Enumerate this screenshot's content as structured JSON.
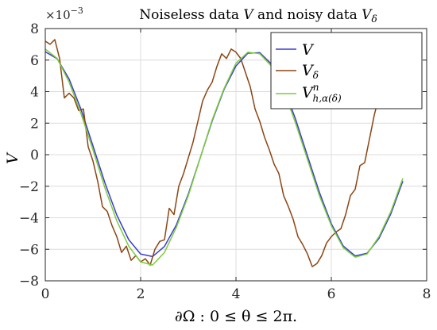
{
  "chart_data": {
    "type": "line",
    "title": "Noiseless data V and noisy data Vδ",
    "title_parts": {
      "prefix": "Noiseless data ",
      "v": "V",
      "mid": " and noisy data ",
      "vdelta": "V",
      "vdelta_sub": "δ"
    },
    "xlabel": "∂Ω : 0 ≤ θ ≤ 2π.",
    "ylabel": "V",
    "y_multiplier": {
      "base": "×10",
      "exponent": "−3"
    },
    "xlim": [
      0,
      8
    ],
    "ylim": [
      -8,
      8
    ],
    "xticks": [
      0,
      2,
      4,
      6,
      8
    ],
    "yticks": [
      -8,
      -6,
      -4,
      -2,
      0,
      2,
      4,
      6,
      8
    ],
    "grid": true,
    "legend_position": "top-right",
    "series": [
      {
        "name": "V",
        "legend": {
          "main": "V",
          "sub": ""
        },
        "color": "#3b3bd6",
        "x": [
          0.0,
          0.25,
          0.5,
          0.75,
          1.0,
          1.25,
          1.5,
          1.75,
          2.0,
          2.25,
          2.5,
          2.75,
          3.0,
          3.25,
          3.5,
          3.75,
          4.0,
          4.25,
          4.5,
          4.75,
          5.0,
          5.25,
          5.5,
          5.75,
          6.0,
          6.25,
          6.5,
          6.75,
          7.0,
          7.25,
          7.5
        ],
        "y": [
          6.53,
          6.08,
          4.8,
          2.87,
          0.56,
          -1.78,
          -3.83,
          -5.39,
          -6.3,
          -6.46,
          -5.82,
          -4.45,
          -2.5,
          -0.2,
          2.13,
          4.14,
          5.63,
          6.44,
          6.47,
          5.73,
          4.28,
          2.25,
          -0.08,
          -2.39,
          -4.38,
          -5.79,
          -6.42,
          -6.25,
          -5.31,
          -3.74,
          -1.67
        ]
      },
      {
        "name": "Vδ",
        "legend": {
          "main": "V",
          "sub": "δ"
        },
        "color": "#8b4513",
        "x": [
          0.0,
          0.1,
          0.2,
          0.3,
          0.4,
          0.5,
          0.6,
          0.7,
          0.8,
          0.9,
          1.0,
          1.1,
          1.2,
          1.3,
          1.4,
          1.5,
          1.6,
          1.7,
          1.8,
          1.9,
          2.0,
          2.1,
          2.2,
          2.3,
          2.4,
          2.5,
          2.6,
          2.7,
          2.8,
          2.9,
          3.0,
          3.1,
          3.2,
          3.3,
          3.4,
          3.5,
          3.6,
          3.7,
          3.8,
          3.9,
          4.0,
          4.1,
          4.2,
          4.3,
          4.4,
          4.5,
          4.6,
          4.7,
          4.8,
          4.9,
          5.0,
          5.1,
          5.2,
          5.3,
          5.4,
          5.5,
          5.6,
          5.7,
          5.8,
          5.9,
          6.0,
          6.1,
          6.2,
          6.3,
          6.4,
          6.5,
          6.6,
          6.7,
          6.8,
          6.9,
          7.0,
          7.1,
          7.2,
          7.3,
          7.4,
          7.5
        ],
        "y": [
          7.2,
          7.0,
          7.3,
          6.1,
          3.6,
          3.9,
          3.6,
          2.8,
          2.9,
          0.5,
          -0.4,
          -1.7,
          -3.3,
          -3.6,
          -4.5,
          -5.2,
          -6.2,
          -5.8,
          -6.7,
          -6.4,
          -6.8,
          -6.6,
          -7.0,
          -6.0,
          -5.5,
          -5.4,
          -3.4,
          -3.8,
          -2.0,
          -1.2,
          -0.2,
          0.8,
          2.1,
          3.4,
          4.1,
          4.6,
          5.6,
          6.4,
          6.1,
          6.7,
          6.5,
          6.1,
          5.2,
          4.3,
          2.9,
          2.1,
          1.1,
          0.3,
          -0.6,
          -1.2,
          -2.6,
          -3.3,
          -4.1,
          -5.2,
          -5.7,
          -6.3,
          -7.1,
          -6.9,
          -6.4,
          -5.6,
          -5.2,
          -4.9,
          -4.7,
          -3.8,
          -2.6,
          -2.2,
          -0.7,
          -0.5,
          1.0,
          2.5,
          3.7,
          5.5,
          4.9,
          6.4,
          6.5,
          7.2
        ]
      },
      {
        "name": "Vnh,α(δ)",
        "legend": {
          "main": "V",
          "sup": "n",
          "sub": "h,α(δ)"
        },
        "color": "#7ccd36",
        "x": [
          0.0,
          0.25,
          0.5,
          0.75,
          1.0,
          1.25,
          1.5,
          1.75,
          2.0,
          2.25,
          2.5,
          2.75,
          3.0,
          3.25,
          3.5,
          3.75,
          4.0,
          4.25,
          4.5,
          4.75,
          5.0,
          5.25,
          5.5,
          5.75,
          6.0,
          6.25,
          6.5,
          6.75,
          7.0,
          7.25,
          7.5
        ],
        "y": [
          6.7,
          6.1,
          4.6,
          2.6,
          0.3,
          -2.1,
          -4.2,
          -5.8,
          -6.8,
          -7.0,
          -6.2,
          -4.6,
          -2.6,
          -0.2,
          2.2,
          4.2,
          5.8,
          6.5,
          6.4,
          5.6,
          4.1,
          2.0,
          -0.3,
          -2.6,
          -4.5,
          -5.9,
          -6.5,
          -6.3,
          -5.2,
          -3.6,
          -1.5
        ]
      }
    ]
  }
}
